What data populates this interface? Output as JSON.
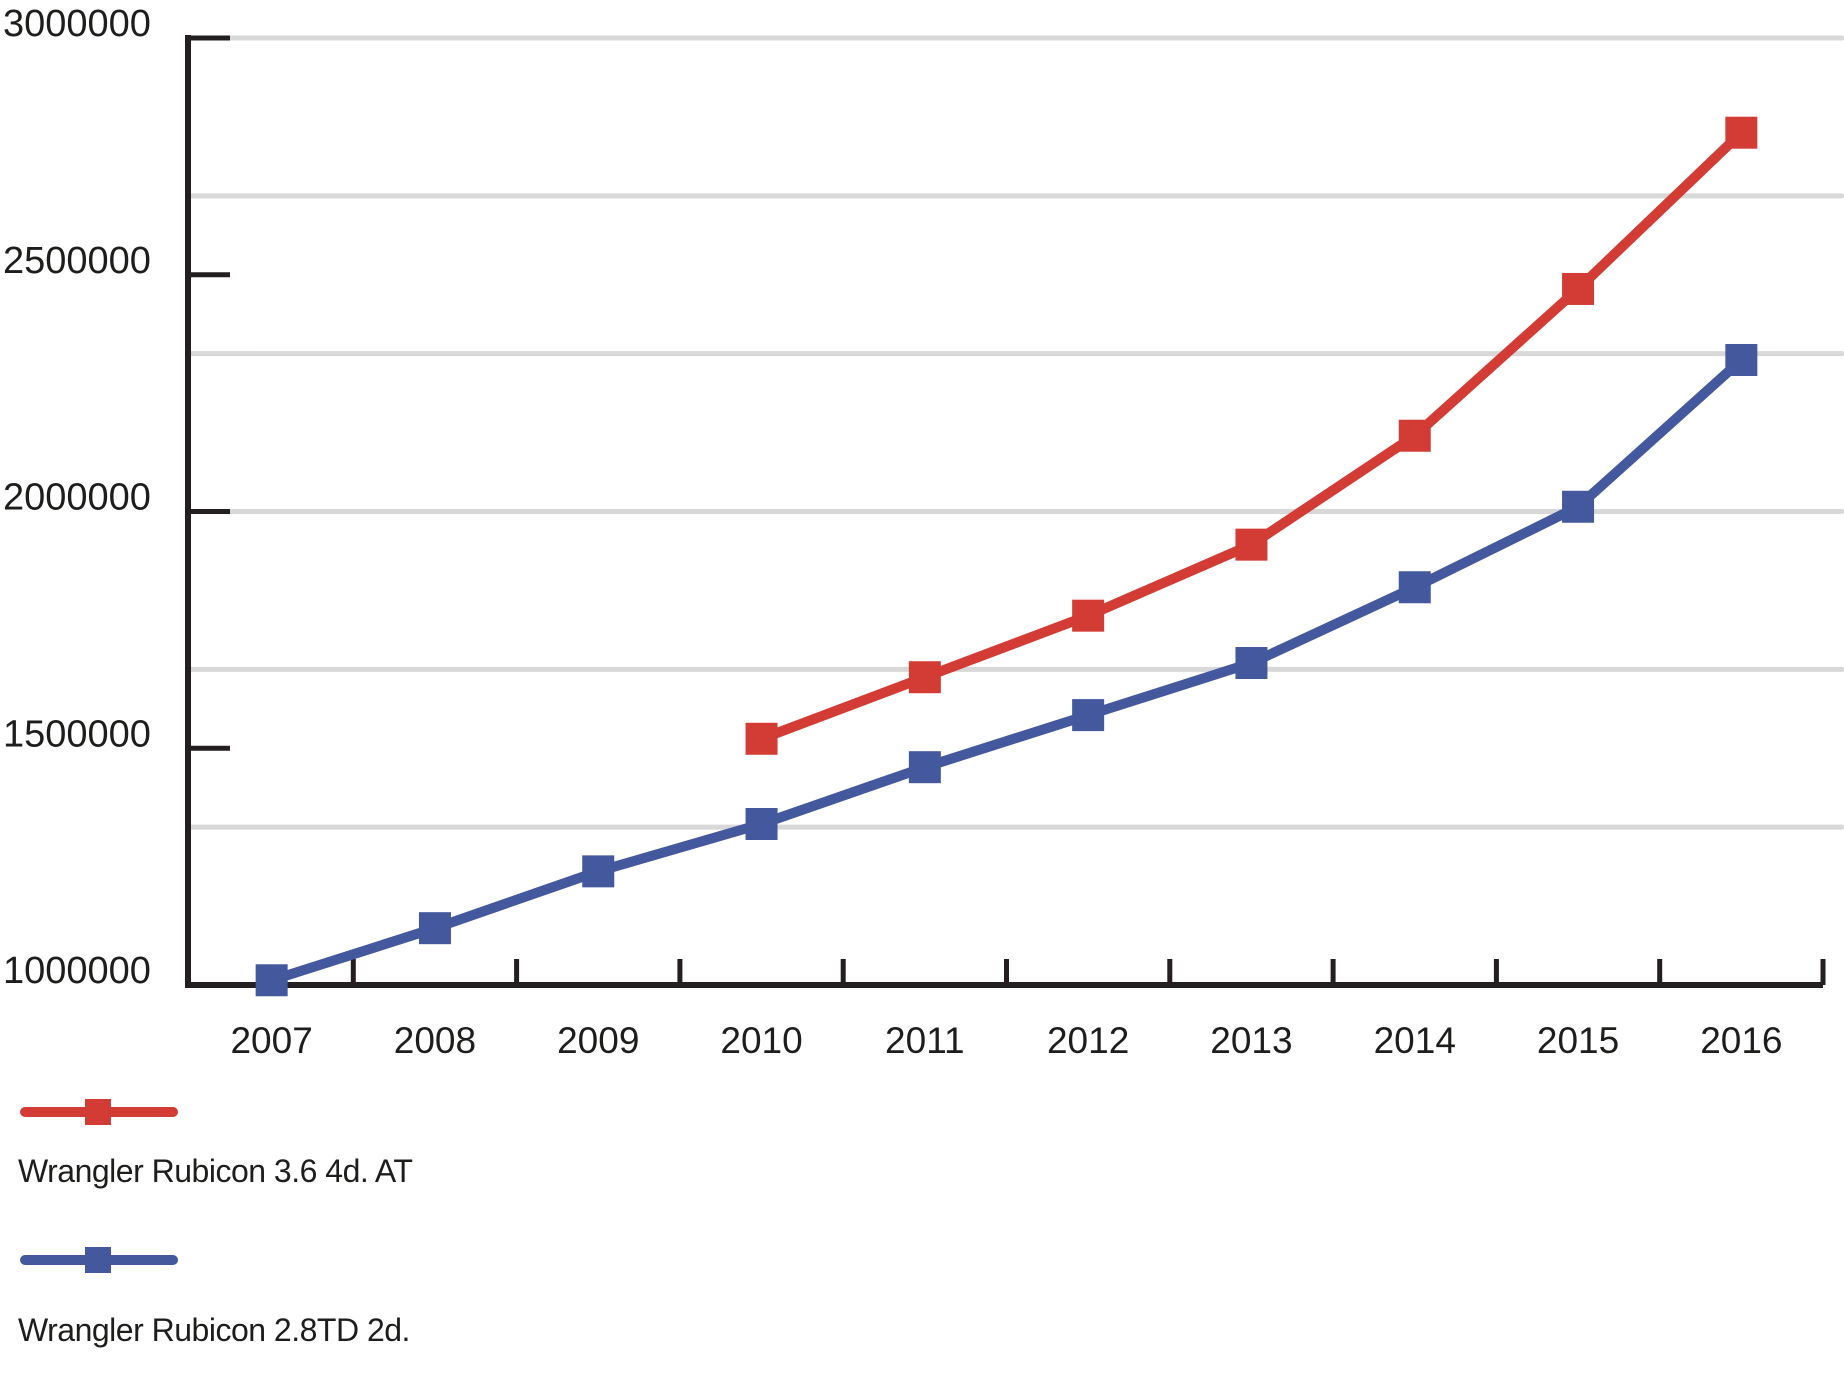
{
  "page": {
    "background": "#ffffff"
  },
  "chart_data": {
    "type": "line",
    "x": [
      "2007",
      "2008",
      "2009",
      "2010",
      "2011",
      "2012",
      "2013",
      "2014",
      "2015",
      "2016"
    ],
    "series": [
      {
        "name": "Wrangler Rubicon 3.6 4d. AT",
        "color": "#d23c35",
        "values": [
          null,
          null,
          null,
          1520000,
          1650000,
          1780000,
          1930000,
          2160000,
          2470000,
          2800000
        ]
      },
      {
        "name": "Wrangler Rubicon 2.8TD 2d.",
        "color": "#44589e",
        "values": [
          1010000,
          1120000,
          1240000,
          1340000,
          1460000,
          1570000,
          1680000,
          1840000,
          2010000,
          2320000
        ]
      }
    ],
    "title": "",
    "xlabel": "",
    "ylabel": "",
    "ylim": [
      1000000,
      3000000
    ],
    "y_ticks": [
      3000000,
      2500000,
      2000000,
      1500000,
      1000000
    ],
    "y_tick_labels": [
      "3000000",
      "2500000",
      "2000000",
      "1500000",
      "1000000"
    ],
    "grid": true,
    "grid_divisions": 6,
    "legend_position": "bottom-left",
    "marker": "square",
    "axis_color": "#231f20",
    "grid_color": "#d8d8d8",
    "text_color": "#1d1d1b"
  },
  "legend": {
    "items": [
      {
        "label": "Wrangler Rubicon 3.6 4d. AT"
      },
      {
        "label": "Wrangler Rubicon 2.8TD 2d."
      }
    ]
  }
}
